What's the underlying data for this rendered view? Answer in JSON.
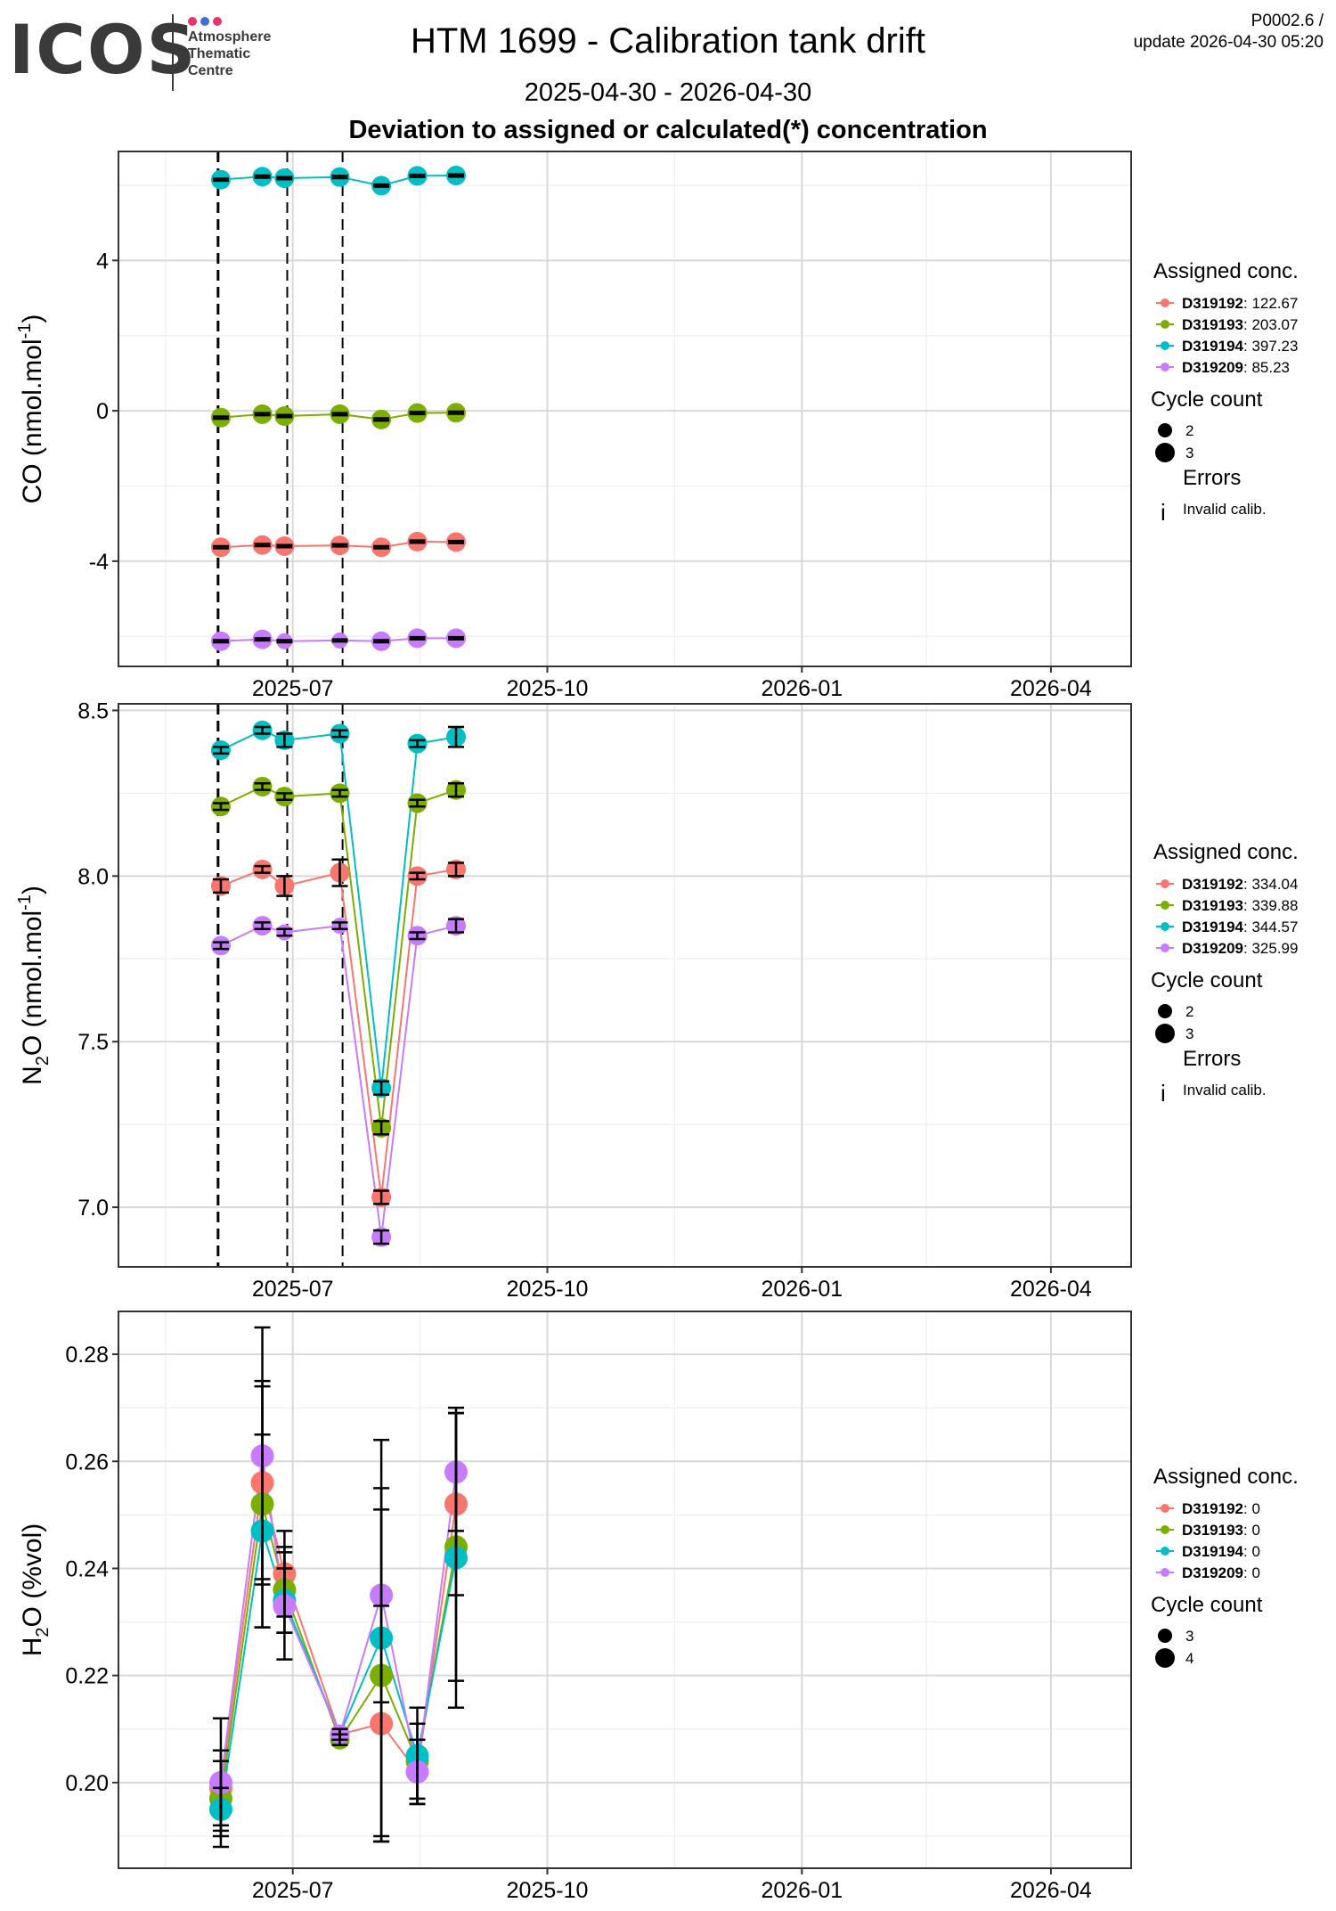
{
  "header": {
    "logo_text": "ICOS",
    "logo_lines": [
      "Atmosphere",
      "Thematic",
      "Centre"
    ],
    "logo_dot_colors": [
      "#e8336d",
      "#3d6fd6",
      "#e8336d"
    ],
    "title": "HTM 1699 - Calibration tank drift",
    "date_range": "2025-04-30 - 2026-04-30",
    "subtitle": "Deviation to assigned or calculated(*) concentration",
    "version": "P0002.6 /",
    "update": "update  2026-04-30 05:20"
  },
  "colors": {
    "D319192": "#F8766D",
    "D319193": "#7CAE00",
    "D319194": "#00BFC4",
    "D319209": "#C77CFF"
  },
  "chart_data": [
    {
      "type": "scatter",
      "name": "co-panel",
      "ylabel_main": "CO (nmol.mol",
      "ylabel_sup": "-1",
      "ylabel_tail": ")",
      "ylim": [
        -6.8,
        6.9
      ],
      "yticks": [
        -4,
        0,
        4
      ],
      "ytick_labels": [
        "-4",
        "0",
        "4"
      ],
      "xlim": [
        "2025-04-29",
        "2026-04-30"
      ],
      "xticks": [
        "2025-07-01",
        "2025-10-01",
        "2026-01-01",
        "2026-04-01"
      ],
      "xtick_labels": [
        "2025-07",
        "2025-10",
        "2026-01",
        "2026-04"
      ],
      "vlines": [
        "2025-06-04",
        "2025-06-29",
        "2025-07-19"
      ],
      "dates": [
        "2025-06-05",
        "2025-06-20",
        "2025-06-28",
        "2025-07-18",
        "2025-08-02",
        "2025-08-15",
        "2025-08-29"
      ],
      "series": [
        {
          "name": "D319192",
          "values": [
            -3.63,
            -3.57,
            -3.6,
            -3.58,
            -3.63,
            -3.48,
            -3.49
          ],
          "sizes": [
            3,
            3,
            3,
            3,
            3,
            3,
            3
          ]
        },
        {
          "name": "D319193",
          "values": [
            -0.18,
            -0.09,
            -0.14,
            -0.09,
            -0.23,
            -0.06,
            -0.05
          ],
          "sizes": [
            3,
            3,
            3,
            3,
            3,
            3,
            3
          ]
        },
        {
          "name": "D319194",
          "values": [
            6.15,
            6.23,
            6.19,
            6.22,
            5.99,
            6.25,
            6.26
          ],
          "sizes": [
            3,
            3,
            3,
            3,
            3,
            3,
            3
          ]
        },
        {
          "name": "D319209",
          "values": [
            -6.13,
            -6.08,
            -6.13,
            -6.11,
            -6.13,
            -6.05,
            -6.05
          ],
          "sizes": [
            3,
            3,
            2,
            2,
            3,
            3,
            3
          ]
        }
      ],
      "errors": [
        0.03,
        0.03,
        0.03,
        0.03,
        0.03,
        0.03,
        0.03
      ],
      "legend": {
        "title": "Assigned conc.",
        "entries": [
          {
            "id": "D319192",
            "value": ": 122.67"
          },
          {
            "id": "D319193",
            "value": ": 203.07"
          },
          {
            "id": "D319194",
            "value": ": 397.23"
          },
          {
            "id": "D319209",
            "value": ": 85.23"
          }
        ],
        "size_title": "Cycle count",
        "size_values": [
          "2",
          "3"
        ],
        "errors_title": "Errors",
        "errors_label": "Invalid calib."
      }
    },
    {
      "type": "scatter",
      "name": "n2o-panel",
      "ylabel_main": "N",
      "ylabel_sub": "2",
      "ylabel_mid": "O (nmol.mol",
      "ylabel_sup": "-1",
      "ylabel_tail": ")",
      "ylim": [
        6.82,
        8.52
      ],
      "yticks": [
        7.0,
        7.5,
        8.0,
        8.5
      ],
      "ytick_labels": [
        "7.0",
        "7.5",
        "8.0",
        "8.5"
      ],
      "xlim": [
        "2025-04-29",
        "2026-04-30"
      ],
      "xticks": [
        "2025-07-01",
        "2025-10-01",
        "2026-01-01",
        "2026-04-01"
      ],
      "xtick_labels": [
        "2025-07",
        "2025-10",
        "2026-01",
        "2026-04"
      ],
      "vlines": [
        "2025-06-04",
        "2025-06-29",
        "2025-07-19"
      ],
      "dates": [
        "2025-06-05",
        "2025-06-20",
        "2025-06-28",
        "2025-07-18",
        "2025-08-02",
        "2025-08-15",
        "2025-08-29"
      ],
      "series": [
        {
          "name": "D319192",
          "values": [
            7.97,
            8.02,
            7.97,
            8.01,
            7.03,
            8.0,
            8.02
          ],
          "sizes": [
            3,
            3,
            3,
            3,
            3,
            3,
            3
          ],
          "errors": [
            0.02,
            0.01,
            0.03,
            0.04,
            0.02,
            0.01,
            0.02
          ]
        },
        {
          "name": "D319193",
          "values": [
            8.21,
            8.27,
            8.24,
            8.25,
            7.24,
            8.22,
            8.26
          ],
          "sizes": [
            3,
            3,
            3,
            3,
            3,
            3,
            3
          ],
          "errors": [
            0.01,
            0.01,
            0.01,
            0.01,
            0.02,
            0.01,
            0.02
          ]
        },
        {
          "name": "D319194",
          "values": [
            8.38,
            8.44,
            8.41,
            8.43,
            7.36,
            8.4,
            8.42
          ],
          "sizes": [
            3,
            3,
            3,
            3,
            3,
            3,
            3
          ],
          "errors": [
            0.01,
            0.01,
            0.02,
            0.01,
            0.02,
            0.01,
            0.03
          ]
        },
        {
          "name": "D319209",
          "values": [
            7.79,
            7.85,
            7.83,
            7.85,
            6.91,
            7.82,
            7.85
          ],
          "sizes": [
            3,
            3,
            2,
            2,
            3,
            3,
            3
          ],
          "errors": [
            0.01,
            0.01,
            0.01,
            0.01,
            0.02,
            0.01,
            0.02
          ]
        }
      ],
      "legend": {
        "title": "Assigned conc.",
        "entries": [
          {
            "id": "D319192",
            "value": ": 334.04"
          },
          {
            "id": "D319193",
            "value": ": 339.88"
          },
          {
            "id": "D319194",
            "value": ": 344.57"
          },
          {
            "id": "D319209",
            "value": ": 325.99"
          }
        ],
        "size_title": "Cycle count",
        "size_values": [
          "2",
          "3"
        ],
        "errors_title": "Errors",
        "errors_label": "Invalid calib."
      }
    },
    {
      "type": "scatter",
      "name": "h2o-panel",
      "ylabel_main": "H",
      "ylabel_sub": "2",
      "ylabel_tail": "O (%vol)",
      "ylim": [
        0.184,
        0.288
      ],
      "yticks": [
        0.2,
        0.22,
        0.24,
        0.26,
        0.28
      ],
      "ytick_labels": [
        "0.20",
        "0.22",
        "0.24",
        "0.26",
        "0.28"
      ],
      "xlim": [
        "2025-04-29",
        "2026-04-30"
      ],
      "xticks": [
        "2025-07-01",
        "2025-10-01",
        "2026-01-01",
        "2026-04-01"
      ],
      "xtick_labels": [
        "2025-07",
        "2025-10",
        "2026-01",
        "2026-04"
      ],
      "vlines": [],
      "dates": [
        "2025-06-05",
        "2025-06-20",
        "2025-06-28",
        "2025-07-18",
        "2025-08-02",
        "2025-08-15",
        "2025-08-29"
      ],
      "series": [
        {
          "name": "D319192",
          "values": [
            0.199,
            0.256,
            0.239,
            0.209,
            0.211,
            0.202,
            0.252
          ],
          "sizes": [
            4,
            4,
            4,
            3,
            4,
            4,
            4
          ],
          "errors": [
            0.007,
            0.018,
            0.008,
            0.001,
            0.022,
            0.006,
            0.017
          ]
        },
        {
          "name": "D319193",
          "values": [
            0.197,
            0.252,
            0.236,
            0.208,
            0.22,
            0.204,
            0.244
          ],
          "sizes": [
            4,
            4,
            4,
            3,
            4,
            4,
            4
          ],
          "errors": [
            0.007,
            0.023,
            0.008,
            0.001,
            0.031,
            0.007,
            0.025
          ]
        },
        {
          "name": "D319194",
          "values": [
            0.195,
            0.247,
            0.234,
            0.209,
            0.227,
            0.205,
            0.242
          ],
          "sizes": [
            4,
            4,
            4,
            3,
            4,
            4,
            4
          ],
          "errors": [
            0.004,
            0.018,
            0.006,
            0.001,
            0.037,
            0.009,
            0.028
          ]
        },
        {
          "name": "D319209",
          "values": [
            0.2,
            0.261,
            0.233,
            0.209,
            0.235,
            0.202,
            0.258
          ],
          "sizes": [
            4,
            4,
            4,
            3,
            4,
            4,
            4
          ],
          "errors": [
            0.012,
            0.024,
            0.01,
            0.001,
            0.02,
            0.006,
            0.011
          ]
        }
      ],
      "legend": {
        "title": "Assigned conc.",
        "entries": [
          {
            "id": "D319192",
            "value": ": 0"
          },
          {
            "id": "D319193",
            "value": ": 0"
          },
          {
            "id": "D319194",
            "value": ": 0"
          },
          {
            "id": "D319209",
            "value": ": 0"
          }
        ],
        "size_title": "Cycle count",
        "size_values": [
          "3",
          "4"
        ]
      }
    }
  ]
}
